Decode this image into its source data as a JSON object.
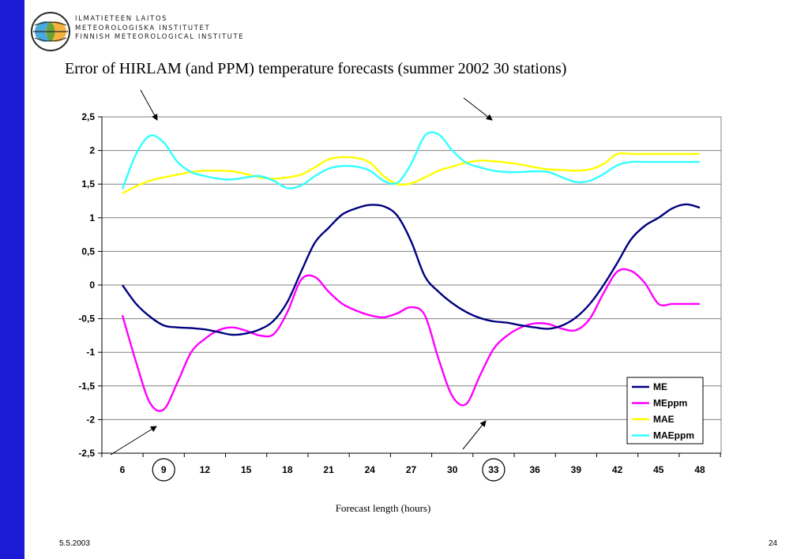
{
  "header": {
    "org_lines": [
      "ILMATIETEEN LAITOS",
      "METEOROLOGISKA INSTITUTET",
      "FINNISH METEOROLOGICAL INSTITUTE"
    ]
  },
  "footer": {
    "date": "5.5.2003",
    "page_number": "24"
  },
  "colors": {
    "sidebar": "#1b1bd6",
    "ME": "#000080",
    "MEppm": "#ff00ff",
    "MAE": "#ffff00",
    "MAEppm": "#33ffff"
  },
  "chart_data": {
    "type": "line",
    "title": "Error of HIRLAM (and PPM) temperature forecasts (summer 2002 30 stations)",
    "xlabel": "Forecast length (hours)",
    "ylabel": "",
    "x_ticks": [
      6,
      9,
      12,
      15,
      18,
      21,
      24,
      27,
      30,
      33,
      36,
      39,
      42,
      45,
      48
    ],
    "circled_ticks": [
      9,
      33
    ],
    "x_range": [
      6,
      48
    ],
    "ylim": [
      -2.5,
      2.5
    ],
    "y_ticks": [
      "2,5",
      "2",
      "1,5",
      "1",
      "0,5",
      "0",
      "-0,5",
      "-1",
      "-1,5",
      "-2",
      "-2,5"
    ],
    "grid": "horizontal",
    "legend_position": "bottom-right",
    "series": [
      {
        "name": "ME",
        "color": "#000080",
        "x": [
          6,
          7,
          8,
          9,
          10,
          11,
          12,
          13,
          14,
          15,
          16,
          17,
          18,
          19,
          20,
          21,
          22,
          23,
          24,
          25,
          26,
          27,
          28,
          29,
          30,
          31,
          32,
          33,
          34,
          35,
          36,
          37,
          38,
          39,
          40,
          41,
          42,
          43,
          44,
          45,
          46,
          47,
          48
        ],
        "y": [
          0.0,
          -0.28,
          -0.47,
          -0.6,
          -0.63,
          -0.64,
          -0.66,
          -0.7,
          -0.74,
          -0.72,
          -0.66,
          -0.53,
          -0.25,
          0.2,
          0.63,
          0.85,
          1.05,
          1.14,
          1.19,
          1.17,
          1.03,
          0.65,
          0.13,
          -0.1,
          -0.27,
          -0.4,
          -0.49,
          -0.54,
          -0.56,
          -0.6,
          -0.63,
          -0.65,
          -0.6,
          -0.48,
          -0.28,
          0.0,
          0.33,
          0.68,
          0.88,
          1.0,
          1.14,
          1.2,
          1.15
        ]
      },
      {
        "name": "MEppm",
        "color": "#ff00ff",
        "x": [
          6,
          7,
          8,
          9,
          10,
          11,
          12,
          13,
          14,
          15,
          16,
          17,
          18,
          19,
          20,
          21,
          22,
          23,
          24,
          25,
          26,
          27,
          28,
          29,
          30,
          31,
          32,
          33,
          34,
          35,
          36,
          37,
          38,
          39,
          40,
          41,
          42,
          43,
          44,
          45,
          46,
          47,
          48
        ],
        "y": [
          -0.45,
          -1.15,
          -1.75,
          -1.85,
          -1.45,
          -1.0,
          -0.8,
          -0.67,
          -0.63,
          -0.68,
          -0.75,
          -0.73,
          -0.4,
          0.08,
          0.12,
          -0.1,
          -0.28,
          -0.38,
          -0.45,
          -0.48,
          -0.42,
          -0.33,
          -0.45,
          -1.1,
          -1.65,
          -1.77,
          -1.35,
          -0.95,
          -0.75,
          -0.63,
          -0.57,
          -0.58,
          -0.65,
          -0.67,
          -0.5,
          -0.12,
          0.2,
          0.21,
          0.03,
          -0.28,
          -0.28,
          -0.28,
          -0.28
        ]
      },
      {
        "name": "MAE",
        "color": "#ffff00",
        "x": [
          6,
          7,
          8,
          9,
          10,
          11,
          12,
          13,
          14,
          15,
          16,
          17,
          18,
          19,
          20,
          21,
          22,
          23,
          24,
          25,
          26,
          27,
          28,
          29,
          30,
          31,
          32,
          33,
          34,
          35,
          36,
          37,
          38,
          39,
          40,
          41,
          42,
          43,
          44,
          45,
          46,
          47,
          48
        ],
        "y": [
          1.36,
          1.47,
          1.55,
          1.6,
          1.64,
          1.68,
          1.7,
          1.7,
          1.69,
          1.65,
          1.6,
          1.58,
          1.6,
          1.64,
          1.75,
          1.87,
          1.9,
          1.89,
          1.82,
          1.62,
          1.5,
          1.51,
          1.6,
          1.7,
          1.76,
          1.82,
          1.85,
          1.84,
          1.82,
          1.79,
          1.75,
          1.72,
          1.71,
          1.7,
          1.72,
          1.8,
          1.95,
          1.95,
          1.95,
          1.95,
          1.95,
          1.95,
          1.95
        ]
      },
      {
        "name": "MAEppm",
        "color": "#33ffff",
        "x": [
          6,
          7,
          8,
          9,
          10,
          11,
          12,
          13,
          14,
          15,
          16,
          17,
          18,
          19,
          20,
          21,
          22,
          23,
          24,
          25,
          26,
          27,
          28,
          29,
          30,
          31,
          32,
          33,
          34,
          35,
          36,
          37,
          38,
          39,
          40,
          41,
          42,
          43,
          44,
          45,
          46,
          47,
          48
        ],
        "y": [
          1.43,
          1.95,
          2.22,
          2.12,
          1.83,
          1.68,
          1.62,
          1.58,
          1.57,
          1.6,
          1.62,
          1.55,
          1.44,
          1.48,
          1.62,
          1.73,
          1.77,
          1.76,
          1.7,
          1.55,
          1.52,
          1.8,
          2.22,
          2.24,
          2.0,
          1.82,
          1.75,
          1.7,
          1.68,
          1.68,
          1.69,
          1.68,
          1.6,
          1.53,
          1.55,
          1.65,
          1.78,
          1.83,
          1.83,
          1.83,
          1.83,
          1.83,
          1.83
        ]
      }
    ]
  }
}
